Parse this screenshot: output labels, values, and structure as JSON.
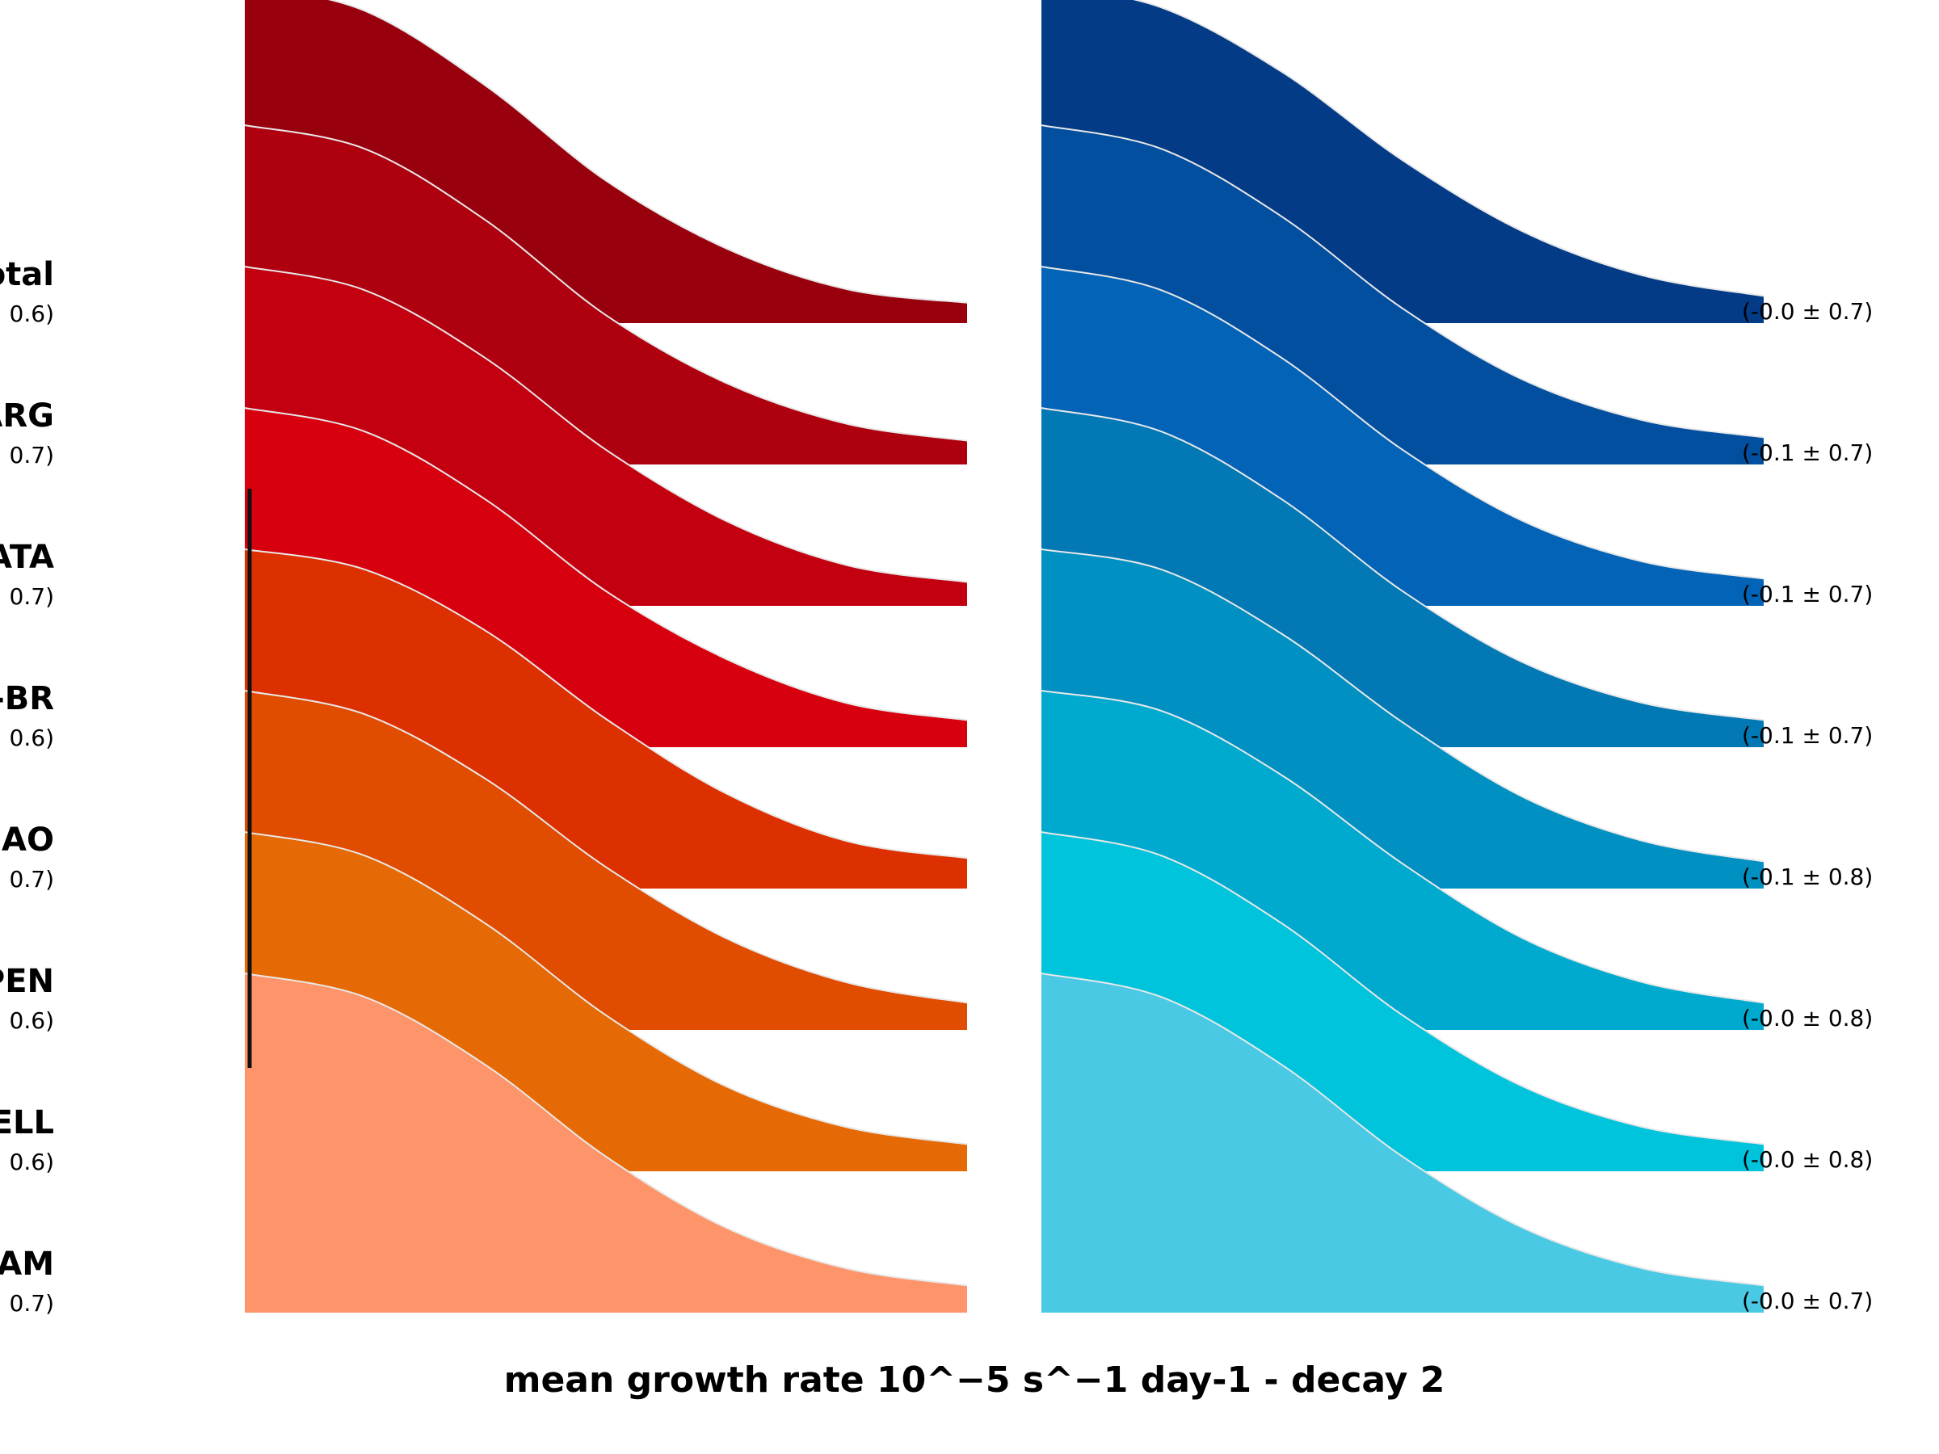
{
  "chart_data": {
    "type": "area",
    "xlabel": "mean growth rate 10^−5 s^−1 day-1 - decay 2",
    "categories": [
      "otal",
      "ARG",
      "ATA",
      "-BR",
      "AO",
      "PEN",
      "ELL",
      "AM"
    ],
    "left_stats": [
      "0.6)",
      "0.7)",
      "0.7)",
      "0.6)",
      "0.7)",
      "0.6)",
      "0.6)",
      "0.7)"
    ],
    "right_stats": [
      "(-0.0 ± 0.7)",
      "(-0.1 ± 0.7)",
      "(-0.1 ± 0.7)",
      "(-0.1 ± 0.7)",
      "(-0.1 ± 0.8)",
      "(-0.0 ± 0.8)",
      "(-0.0 ± 0.8)",
      "(-0.0 ± 0.7)"
    ],
    "left_series": [
      {
        "values": [
          1.0,
          0.92,
          0.7,
          0.42,
          0.22,
          0.1,
          0.06
        ]
      },
      {
        "values": [
          1.0,
          0.93,
          0.72,
          0.44,
          0.24,
          0.12,
          0.07
        ]
      },
      {
        "values": [
          1.0,
          0.93,
          0.73,
          0.46,
          0.25,
          0.12,
          0.07
        ]
      },
      {
        "values": [
          1.0,
          0.93,
          0.73,
          0.46,
          0.26,
          0.13,
          0.08
        ]
      },
      {
        "values": [
          1.0,
          0.94,
          0.76,
          0.5,
          0.28,
          0.14,
          0.09
        ]
      },
      {
        "values": [
          1.0,
          0.93,
          0.74,
          0.48,
          0.27,
          0.14,
          0.08
        ]
      },
      {
        "values": [
          1.0,
          0.93,
          0.73,
          0.46,
          0.25,
          0.13,
          0.08
        ]
      },
      {
        "values": [
          1.0,
          0.93,
          0.73,
          0.46,
          0.25,
          0.13,
          0.08
        ]
      }
    ],
    "right_series": [
      {
        "values": [
          1.0,
          0.93,
          0.74,
          0.48,
          0.27,
          0.14,
          0.08
        ]
      },
      {
        "values": [
          1.0,
          0.93,
          0.73,
          0.46,
          0.25,
          0.13,
          0.08
        ]
      },
      {
        "values": [
          1.0,
          0.93,
          0.73,
          0.46,
          0.25,
          0.13,
          0.08
        ]
      },
      {
        "values": [
          1.0,
          0.93,
          0.73,
          0.46,
          0.25,
          0.13,
          0.08
        ]
      },
      {
        "values": [
          1.0,
          0.94,
          0.75,
          0.49,
          0.27,
          0.14,
          0.08
        ]
      },
      {
        "values": [
          1.0,
          0.94,
          0.75,
          0.49,
          0.27,
          0.14,
          0.08
        ]
      },
      {
        "values": [
          1.0,
          0.93,
          0.73,
          0.46,
          0.25,
          0.13,
          0.08
        ]
      },
      {
        "values": [
          1.0,
          0.93,
          0.73,
          0.46,
          0.25,
          0.13,
          0.08
        ]
      }
    ],
    "left_colors": [
      "#99000d",
      "#ae000e",
      "#c20010",
      "#d6000f",
      "#dd3000",
      "#e04c00",
      "#e56a05",
      "#fe9469"
    ],
    "right_colors": [
      "#033b87",
      "#034f9f",
      "#0263b7",
      "#0278b4",
      "#0090c2",
      "#00aacf",
      "#00c3dc",
      "#4ac9e4"
    ],
    "outline_color": "#e8e8e8",
    "marker_color": "#111111",
    "markers": [
      {
        "row": 3,
        "value": 0.0
      },
      {
        "row": 5,
        "value": 0.0
      }
    ]
  }
}
